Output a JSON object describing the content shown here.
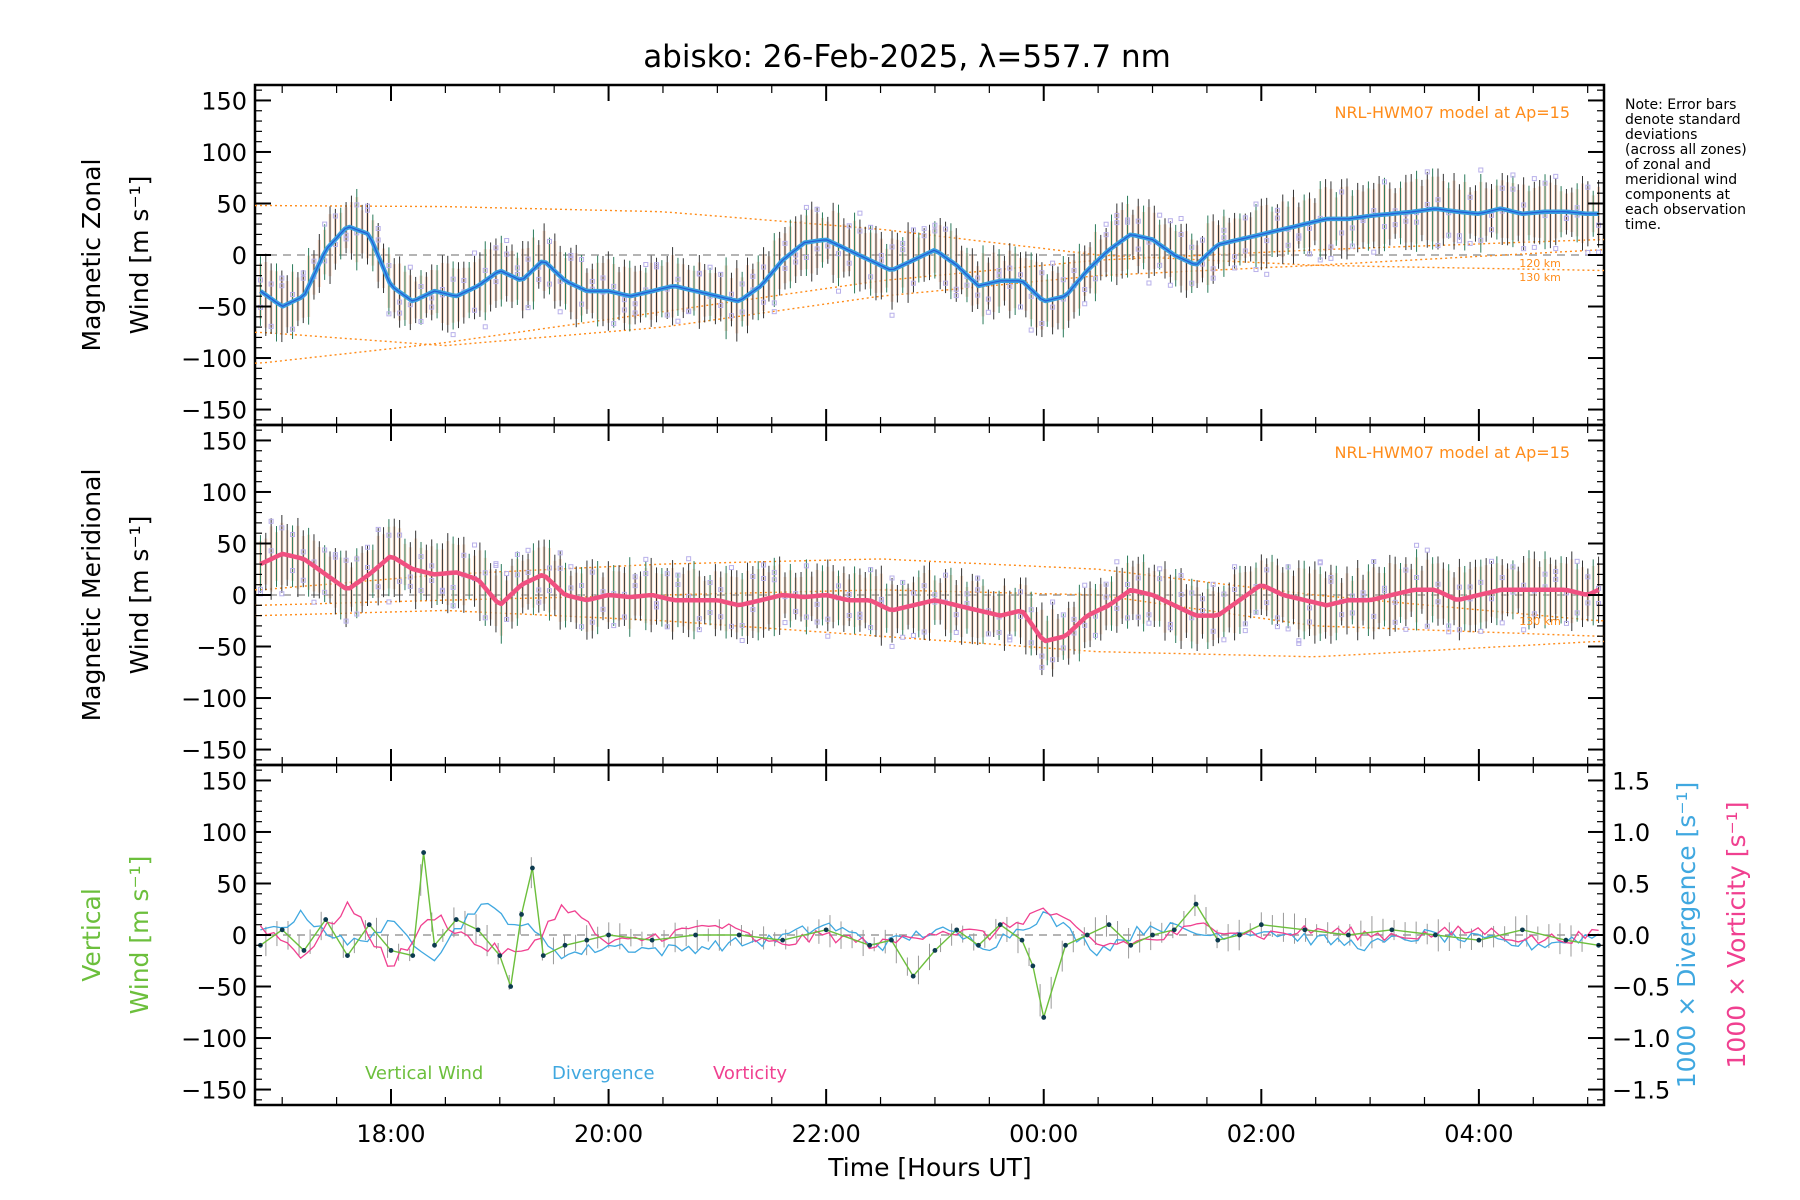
{
  "title": "abisko: 26-Feb-2025, λ=557.7 nm",
  "note_lines": [
    "Note: Error bars",
    "denote standard",
    "deviations",
    "(across all zones)",
    "of zonal and",
    "meridional wind",
    "components at",
    "each observation",
    "time."
  ],
  "model_label": "NRL-HWM07 model at Ap=15",
  "km_labels": [
    "120 km",
    "130 km"
  ],
  "x_axis_label": "Time [Hours UT]",
  "x_ticks": [
    "18:00",
    "20:00",
    "22:00",
    "00:00",
    "02:00",
    "04:00"
  ],
  "y_ticks": [
    "150",
    "100",
    "50",
    "0",
    "−50",
    "−100",
    "−150"
  ],
  "right_ticks": [
    "1.5",
    "1.0",
    "0.5",
    "0.0",
    "−0.5",
    "−1.0",
    "−1.5"
  ],
  "panels": {
    "zonal": {
      "ylabel_line1": "Magnetic Zonal",
      "ylabel_line2": "Wind [m s⁻¹]"
    },
    "meridional": {
      "ylabel_line1": "Magnetic Meridional",
      "ylabel_line2": "Wind [m s⁻¹]"
    },
    "vertical": {
      "ylabel_line1": "Vertical",
      "ylabel_line2": "Wind [m s⁻¹]",
      "right_label_div": "1000 × Divergence [s⁻¹]",
      "right_label_vort": "1000 × Vorticity [s⁻¹]"
    }
  },
  "legend": {
    "vertical": "Vertical Wind",
    "divergence": "Divergence",
    "vorticity": "Vorticity"
  },
  "colors": {
    "zonal": "#3a9fe0",
    "meridional": "#f05080",
    "vertical": "#6cbf3c",
    "divergence": "#40a8e0",
    "vorticity": "#f04090",
    "model": "#ff8c1a",
    "scatter": "#b8b0ea",
    "errorbar": "#333333"
  },
  "chart_data": [
    {
      "type": "line",
      "title": "Magnetic Zonal",
      "xlabel": "",
      "ylabel": "Magnetic Zonal Wind [m s⁻¹]",
      "xlim": [
        16.75,
        29.15
      ],
      "ylim": [
        -165,
        165
      ],
      "x_ticks": [
        18,
        20,
        22,
        24,
        26,
        28
      ],
      "series": [
        {
          "x": [
            16.8,
            17.0,
            17.2,
            17.4,
            17.6,
            17.8,
            18.0,
            18.2,
            18.4,
            18.6,
            18.8,
            19.0,
            19.2,
            19.4,
            19.6,
            19.8,
            20.0,
            20.2,
            20.4,
            20.6,
            20.8,
            21.0,
            21.2,
            21.4,
            21.6,
            21.8,
            22.0,
            22.2,
            22.4,
            22.6,
            22.8,
            23.0,
            23.2,
            23.4,
            23.6,
            23.8,
            24.0,
            24.2,
            24.4,
            24.6,
            24.8,
            25.0,
            25.2,
            25.4,
            25.6,
            25.8,
            26.0,
            26.2,
            26.4,
            26.6,
            26.8,
            27.0,
            27.2,
            27.4,
            27.6,
            27.8,
            28.0,
            28.2,
            28.4,
            28.6,
            28.8,
            29.0,
            29.1
          ],
          "y": [
            -35,
            -50,
            -40,
            5,
            28,
            20,
            -30,
            -45,
            -35,
            -40,
            -30,
            -15,
            -25,
            -5,
            -25,
            -35,
            -35,
            -40,
            -35,
            -30,
            -35,
            -40,
            -45,
            -30,
            -5,
            12,
            15,
            5,
            -5,
            -15,
            -5,
            5,
            -10,
            -30,
            -25,
            -25,
            -45,
            -40,
            -15,
            5,
            20,
            15,
            0,
            -10,
            10,
            15,
            20,
            25,
            30,
            35,
            35,
            38,
            40,
            42,
            45,
            42,
            40,
            45,
            40,
            42,
            42,
            40,
            40
          ]
        }
      ],
      "model_curves": [
        {
          "x": [
            16.8,
            18.5,
            20.5,
            22.5,
            24.5,
            26.5,
            29.1
          ],
          "y": [
            48,
            47,
            42,
            25,
            0,
            -10,
            -15
          ]
        },
        {
          "x": [
            16.8,
            18.5,
            20.5,
            22.5,
            24.5,
            26.5,
            29.1
          ],
          "y": [
            -75,
            -88,
            -70,
            -40,
            -20,
            -10,
            5
          ]
        },
        {
          "x": [
            16.8,
            18.5,
            20.5,
            22.5,
            24.5,
            26.5,
            29.1
          ],
          "y": [
            -105,
            -85,
            -55,
            -25,
            -5,
            5,
            15
          ]
        }
      ]
    },
    {
      "type": "line",
      "title": "Magnetic Meridional",
      "xlabel": "",
      "ylabel": "Magnetic Meridional Wind [m s⁻¹]",
      "xlim": [
        16.75,
        29.15
      ],
      "ylim": [
        -165,
        165
      ],
      "x_ticks": [
        18,
        20,
        22,
        24,
        26,
        28
      ],
      "series": [
        {
          "x": [
            16.8,
            17.0,
            17.2,
            17.4,
            17.6,
            17.8,
            18.0,
            18.2,
            18.4,
            18.6,
            18.8,
            19.0,
            19.2,
            19.4,
            19.6,
            19.8,
            20.0,
            20.2,
            20.4,
            20.6,
            20.8,
            21.0,
            21.2,
            21.4,
            21.6,
            21.8,
            22.0,
            22.2,
            22.4,
            22.6,
            22.8,
            23.0,
            23.2,
            23.4,
            23.6,
            23.8,
            24.0,
            24.2,
            24.4,
            24.6,
            24.8,
            25.0,
            25.2,
            25.4,
            25.6,
            25.8,
            26.0,
            26.2,
            26.4,
            26.6,
            26.8,
            27.0,
            27.2,
            27.4,
            27.6,
            27.8,
            28.0,
            28.2,
            28.4,
            28.6,
            28.8,
            29.0,
            29.1
          ],
          "y": [
            30,
            40,
            35,
            20,
            5,
            20,
            38,
            25,
            20,
            22,
            15,
            -10,
            10,
            20,
            0,
            -5,
            0,
            -2,
            0,
            -5,
            -5,
            -5,
            -10,
            -5,
            0,
            -2,
            0,
            -5,
            -5,
            -15,
            -10,
            -5,
            -10,
            -15,
            -20,
            -15,
            -45,
            -40,
            -20,
            -10,
            5,
            0,
            -10,
            -20,
            -20,
            -5,
            10,
            0,
            -5,
            -10,
            -5,
            -5,
            0,
            5,
            5,
            -5,
            0,
            5,
            5,
            5,
            5,
            0,
            5
          ]
        }
      ],
      "model_curves": [
        {
          "x": [
            16.8,
            18.5,
            20.5,
            22.5,
            24.5,
            26.5,
            29.1
          ],
          "y": [
            5,
            20,
            30,
            35,
            25,
            0,
            -25
          ]
        },
        {
          "x": [
            16.8,
            18.5,
            20.5,
            22.5,
            24.5,
            26.5,
            29.1
          ],
          "y": [
            -10,
            -5,
            0,
            5,
            0,
            -30,
            -40
          ]
        },
        {
          "x": [
            16.8,
            18.5,
            20.5,
            22.5,
            24.5,
            26.5,
            29.1
          ],
          "y": [
            -20,
            -15,
            -25,
            -40,
            -55,
            -60,
            -45
          ]
        }
      ]
    },
    {
      "type": "line",
      "title": "Vertical Wind",
      "xlabel": "Time [Hours UT]",
      "ylabel": "Vertical Wind [m s⁻¹]",
      "xlim": [
        16.75,
        29.15
      ],
      "ylim": [
        -165,
        165
      ],
      "y2lim": [
        -1.65,
        1.65
      ],
      "x_ticks": [
        18,
        20,
        22,
        24,
        26,
        28
      ],
      "series": [
        {
          "name": "Vertical Wind",
          "x": [
            16.8,
            17.0,
            17.2,
            17.4,
            17.6,
            17.8,
            18.0,
            18.2,
            18.3,
            18.4,
            18.6,
            18.8,
            19.0,
            19.1,
            19.2,
            19.3,
            19.4,
            19.6,
            19.8,
            20.0,
            20.4,
            20.8,
            21.2,
            21.6,
            22.0,
            22.4,
            22.6,
            22.8,
            23.0,
            23.2,
            23.4,
            23.6,
            23.8,
            23.9,
            24.0,
            24.2,
            24.4,
            24.6,
            24.8,
            25.0,
            25.2,
            25.4,
            25.6,
            25.8,
            26.0,
            26.4,
            26.8,
            27.2,
            27.6,
            28.0,
            28.4,
            28.8,
            29.1
          ],
          "y": [
            -10,
            5,
            -15,
            15,
            -20,
            10,
            -15,
            -20,
            80,
            -10,
            15,
            5,
            -20,
            -50,
            20,
            65,
            -20,
            -10,
            -5,
            0,
            -5,
            0,
            0,
            -5,
            5,
            -10,
            -5,
            -40,
            -15,
            5,
            -10,
            10,
            -5,
            -30,
            -80,
            -10,
            0,
            10,
            -10,
            0,
            5,
            30,
            -5,
            0,
            10,
            5,
            0,
            5,
            0,
            -5,
            5,
            -5,
            -10
          ]
        },
        {
          "name": "Divergence",
          "x": [
            16.8,
            17.2,
            17.6,
            18.0,
            18.4,
            18.8,
            19.2,
            19.6,
            20.0,
            20.5,
            21.0,
            21.5,
            22.0,
            22.5,
            23.0,
            23.5,
            24.0,
            24.5,
            25.0,
            25.5,
            26.0,
            26.5,
            27.0,
            27.5,
            28.0,
            28.5,
            29.1
          ],
          "y": [
            0.0,
            0.2,
            -0.1,
            0.1,
            -0.2,
            0.3,
            0.1,
            -0.2,
            -0.1,
            -0.15,
            -0.1,
            -0.05,
            0.1,
            -0.1,
            0.05,
            -0.1,
            0.2,
            -0.15,
            0.1,
            0.0,
            0.05,
            -0.05,
            -0.1,
            0.0,
            -0.05,
            -0.1,
            0.0
          ]
        },
        {
          "name": "Vorticity",
          "x": [
            16.8,
            17.2,
            17.6,
            18.0,
            18.4,
            18.8,
            19.2,
            19.6,
            20.0,
            20.5,
            21.0,
            21.5,
            22.0,
            22.5,
            23.0,
            23.5,
            24.0,
            24.5,
            25.0,
            25.5,
            26.0,
            26.5,
            27.0,
            27.5,
            28.0,
            28.5,
            29.1
          ],
          "y": [
            0.1,
            -0.2,
            0.3,
            -0.3,
            0.2,
            -0.1,
            -0.2,
            0.3,
            -0.1,
            0.0,
            0.1,
            -0.1,
            0.0,
            -0.1,
            0.05,
            0.0,
            0.25,
            -0.1,
            -0.05,
            0.1,
            0.0,
            0.05,
            0.0,
            0.0,
            0.05,
            -0.05,
            0.0
          ]
        }
      ]
    }
  ]
}
